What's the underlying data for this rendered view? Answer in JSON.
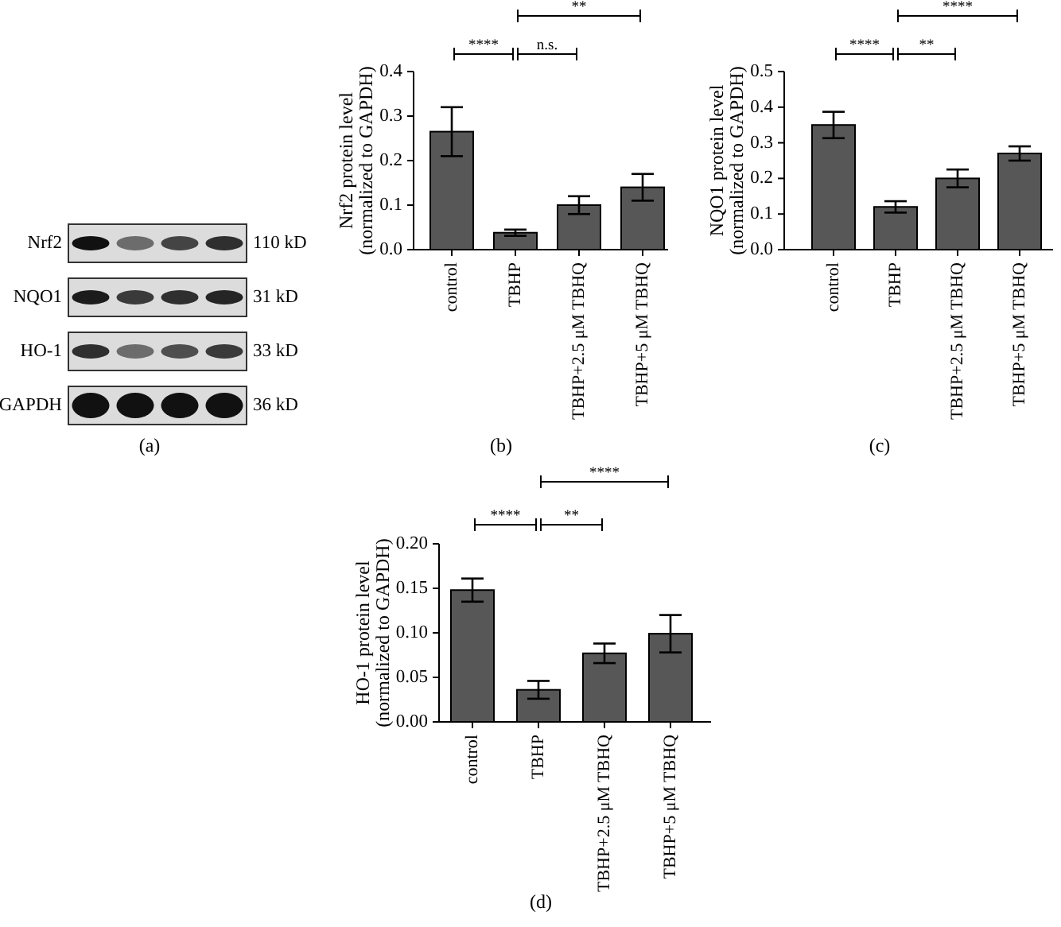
{
  "chart_data": [
    {
      "type": "other",
      "y_categories": [
        "Nrf2",
        "NQO1",
        "HO-1",
        "GAPDH"
      ],
      "y2_categories": [
        "110 kD",
        "31 kD",
        "33 kD",
        "36 kD"
      ],
      "annotations": [
        "(a)"
      ]
    },
    {
      "type": "bar",
      "categories": [
        "control",
        "TBHP",
        "TBHP+2.5 μM TBHQ",
        "TBHP+5 μM TBHQ"
      ],
      "values": [
        0.265,
        0.038,
        0.1,
        0.14
      ],
      "errors": [
        0.055,
        0.007,
        0.02,
        0.03
      ],
      "color": "#575757",
      "ylabel": "Nrf2 protein level\n(normalized to GAPDH)",
      "ylim": [
        0,
        0.4
      ],
      "yticks": [
        {
          "value": 0,
          "label": "0.0"
        },
        0.1,
        0.2,
        0.3,
        0.4
      ],
      "annotations": [
        "****",
        "n.s.",
        "**",
        "(b)"
      ]
    },
    {
      "type": "bar",
      "categories": [
        "control",
        "TBHP",
        "TBHP+2.5 μM TBHQ",
        "TBHP+5 μM TBHQ"
      ],
      "values": [
        0.35,
        0.12,
        0.2,
        0.27
      ],
      "errors": [
        0.037,
        0.016,
        0.025,
        0.02
      ],
      "color": "#575757",
      "ylabel": "NQO1 protein level\n(normalized to GAPDH)",
      "ylim": [
        0,
        0.5
      ],
      "yticks": [
        {
          "value": 0,
          "label": "0.0"
        },
        0.1,
        0.2,
        0.3,
        0.4,
        0.5
      ],
      "annotations": [
        "****",
        "**",
        "****",
        "(c)"
      ]
    },
    {
      "type": "bar",
      "categories": [
        "control",
        "TBHP",
        "TBHP+2.5 μM TBHQ",
        "TBHP+5 μM TBHQ"
      ],
      "values": [
        0.148,
        0.036,
        0.077,
        0.099
      ],
      "errors": [
        0.013,
        0.01,
        0.011,
        0.021
      ],
      "color": "#575757",
      "ylabel": "HO-1 protein level\n(normalized to GAPDH)",
      "ylim": [
        0,
        0.2
      ],
      "yticks": [
        {
          "value": 0,
          "label": "0.00"
        },
        {
          "value": 0.05,
          "label": "0.05"
        },
        {
          "value": 0.1,
          "label": "0.10"
        },
        {
          "value": 0.15,
          "label": "0.15"
        },
        {
          "value": 0.2,
          "label": "0.20"
        }
      ],
      "annotations": [
        "****",
        "**",
        "****",
        "(d)"
      ]
    }
  ]
}
